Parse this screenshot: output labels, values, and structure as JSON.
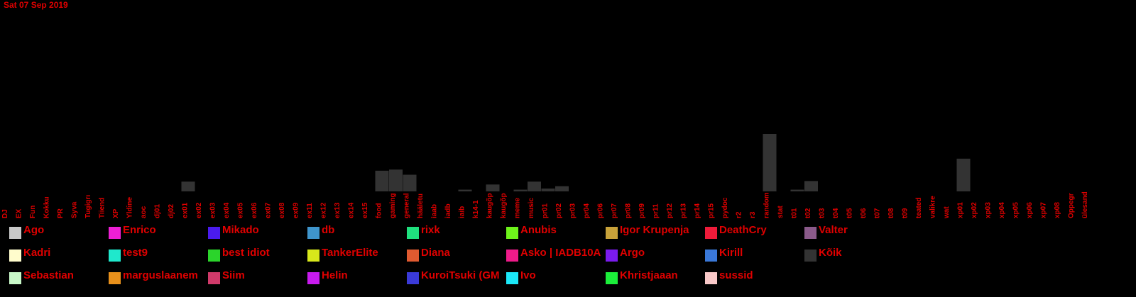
{
  "date": "Sat 07 Sep 2019",
  "chart_data": {
    "type": "bar",
    "ylim": [
      0,
      100
    ],
    "bar_color": "#333333",
    "label_color": "#e00000",
    "categories": [
      "DJ",
      "EX",
      "Fun",
      "Kokku",
      "PR",
      "Syva",
      "Tugigrı",
      "Tiiend",
      "XP",
      "Yldine",
      "aoc",
      "dj01",
      "dj02",
      "ex01",
      "ex02",
      "ex03",
      "ex04",
      "ex05",
      "ex06",
      "ex07",
      "ex08",
      "ex09",
      "ex11",
      "ex12",
      "ex13",
      "ex14",
      "ex15",
      "food",
      "gaming",
      "general",
      "hääletu",
      "iaab",
      "iadb",
      "iaib",
      "k14-1",
      "kaugõp",
      "kaugõp",
      "meme",
      "music",
      "pr01",
      "pr02",
      "pr03",
      "pr04",
      "pr06",
      "pr07",
      "pr08",
      "pr09",
      "pr11",
      "pr12",
      "pr13",
      "pr14",
      "pr15",
      "pydoc",
      "r2",
      "r3",
      "random",
      "stat",
      "t01",
      "t02",
      "t03",
      "t04",
      "t05",
      "t06",
      "t07",
      "t08",
      "t09",
      "teated",
      "valikre",
      "wat",
      "xp01",
      "xp02",
      "xp03",
      "xp04",
      "xp05",
      "xp06",
      "xp07",
      "xp08",
      "Oppegr",
      "ülesand"
    ],
    "values": [
      0,
      0,
      0,
      0,
      0,
      0,
      0,
      0,
      0,
      0,
      0,
      0,
      0,
      17,
      0,
      0,
      0,
      0,
      0,
      0,
      0,
      0,
      0,
      0,
      0,
      0,
      0,
      36,
      38,
      29,
      0,
      0,
      0,
      3,
      0,
      12,
      0,
      3,
      17,
      5,
      9,
      0,
      0,
      0,
      0,
      0,
      0,
      0,
      0,
      0,
      0,
      0,
      0,
      0,
      0,
      100,
      0,
      3,
      18,
      0,
      0,
      0,
      0,
      0,
      0,
      0,
      0,
      0,
      0,
      57,
      0,
      0,
      0,
      0,
      0,
      0,
      0,
      0,
      0
    ]
  },
  "legend": [
    {
      "name": "Ago",
      "color": "#c8c8c8"
    },
    {
      "name": "Enrico",
      "color": "#ee1fd5"
    },
    {
      "name": "Mikado",
      "color": "#4a1bee"
    },
    {
      "name": "db",
      "color": "#3f95cc"
    },
    {
      "name": "rixk",
      "color": "#1fe07e"
    },
    {
      "name": "Anubis",
      "color": "#6ef31b"
    },
    {
      "name": "Igor Krupenja",
      "color": "#c8a23a"
    },
    {
      "name": "DeathCry",
      "color": "#ee1b3a"
    },
    {
      "name": "Valter",
      "color": "#8a5a8a"
    },
    {
      "name": "Kadri",
      "color": "#fffccc"
    },
    {
      "name": "test9",
      "color": "#1fe8cc"
    },
    {
      "name": "best idiot",
      "color": "#2bd42b"
    },
    {
      "name": "TankerElite",
      "color": "#d8e81b"
    },
    {
      "name": "Diana",
      "color": "#e05a30"
    },
    {
      "name": "Asko | IADB10A",
      "color": "#ee1b8a"
    },
    {
      "name": "Argo",
      "color": "#7a1bee"
    },
    {
      "name": "Kirill",
      "color": "#3a78d8"
    },
    {
      "name": "Kõik",
      "color": "#333333"
    },
    {
      "name": "Sebastian",
      "color": "#c8f8c8"
    },
    {
      "name": "marguslaanem",
      "color": "#e8901b"
    },
    {
      "name": "Siim",
      "color": "#d03a6a"
    },
    {
      "name": "Helin",
      "color": "#c81bee"
    },
    {
      "name": "KuroiTsuki (GM",
      "color": "#3a3ad8"
    },
    {
      "name": "Ivo",
      "color": "#1be8f8"
    },
    {
      "name": "Khristjaaan",
      "color": "#1bee3a"
    },
    {
      "name": "sussid",
      "color": "#f8c8c8"
    }
  ]
}
